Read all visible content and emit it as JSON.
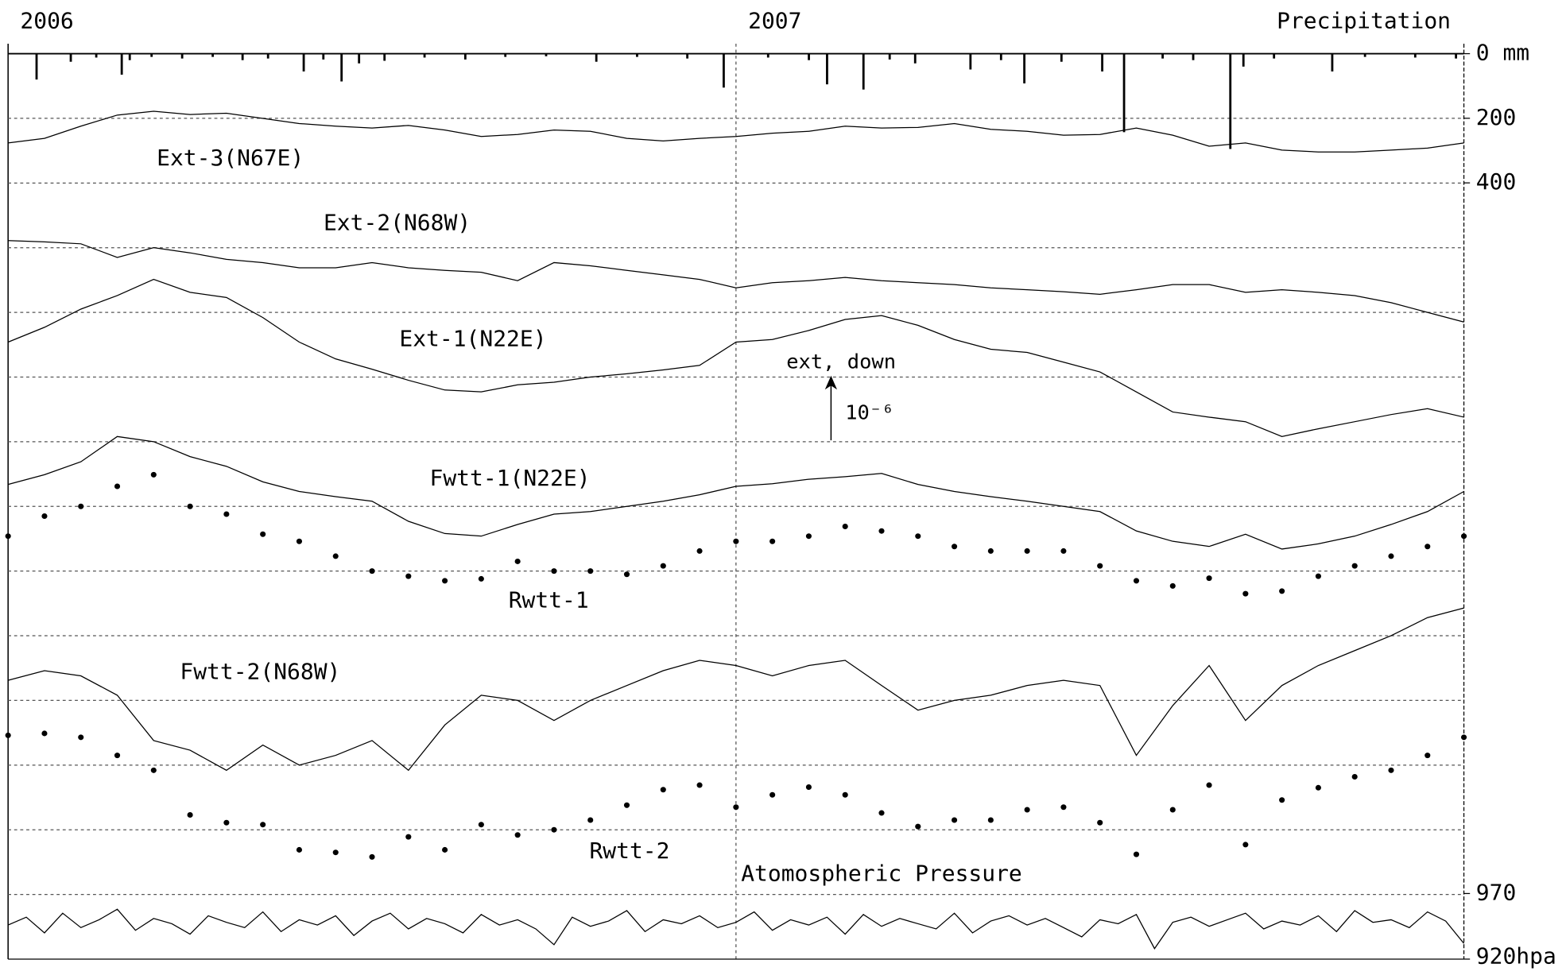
{
  "chart_data": {
    "type": "line",
    "title": "Precipitation",
    "xlim": [
      2006,
      2008
    ],
    "xticks": [
      2006,
      2007
    ],
    "ylim": [
      0,
      14
    ],
    "gridlines": [
      1,
      2,
      3,
      4,
      5,
      6,
      7,
      8,
      9,
      10,
      11,
      12,
      13
    ],
    "x": [
      2006.0,
      2006.05,
      2006.1,
      2006.15,
      2006.2,
      2006.25,
      2006.3,
      2006.35,
      2006.4,
      2006.45,
      2006.5,
      2006.55,
      2006.6,
      2006.65,
      2006.7,
      2006.75,
      2006.8,
      2006.85,
      2006.9,
      2006.95,
      2007.0,
      2007.05,
      2007.1,
      2007.15,
      2007.2,
      2007.25,
      2007.3,
      2007.35,
      2007.4,
      2007.45,
      2007.5,
      2007.55,
      2007.6,
      2007.65,
      2007.7,
      2007.75,
      2007.8,
      2007.85,
      2007.9,
      2007.95,
      2008.0
    ],
    "series": [
      {
        "name": "Ext-3(N67E)",
        "style": "line",
        "color": "#000000",
        "values": [
          12.62,
          12.69,
          12.88,
          13.05,
          13.11,
          13.06,
          13.08,
          13.0,
          12.92,
          12.88,
          12.85,
          12.89,
          12.82,
          12.72,
          12.75,
          12.82,
          12.8,
          12.69,
          12.65,
          12.69,
          12.72,
          12.77,
          12.8,
          12.88,
          12.85,
          12.86,
          12.92,
          12.83,
          12.8,
          12.74,
          12.75,
          12.85,
          12.74,
          12.57,
          12.62,
          12.51,
          12.48,
          12.48,
          12.51,
          12.54,
          12.62
        ]
      },
      {
        "name": "Ext-2(N68W)",
        "style": "line",
        "color": "#000000",
        "values": [
          11.11,
          11.09,
          11.06,
          10.85,
          11.0,
          10.92,
          10.82,
          10.77,
          10.69,
          10.69,
          10.77,
          10.69,
          10.65,
          10.62,
          10.49,
          10.77,
          10.72,
          10.65,
          10.58,
          10.51,
          10.38,
          10.46,
          10.49,
          10.54,
          10.49,
          10.46,
          10.43,
          10.38,
          10.35,
          10.32,
          10.28,
          10.35,
          10.43,
          10.43,
          10.31,
          10.35,
          10.31,
          10.26,
          10.15,
          10.0,
          9.85
        ]
      },
      {
        "name": "Ext-1(N22E)",
        "style": "line",
        "color": "#000000",
        "values": [
          9.54,
          9.77,
          10.05,
          10.26,
          10.51,
          10.31,
          10.23,
          9.92,
          9.54,
          9.28,
          9.12,
          8.95,
          8.8,
          8.77,
          8.88,
          8.92,
          9.0,
          9.05,
          9.11,
          9.18,
          9.54,
          9.58,
          9.72,
          9.89,
          9.95,
          9.8,
          9.58,
          9.43,
          9.38,
          9.23,
          9.08,
          8.77,
          8.46,
          8.38,
          8.31,
          8.08,
          8.2,
          8.31,
          8.42,
          8.51,
          8.38
        ]
      },
      {
        "name": "Fwtt-1(N22E)",
        "style": "line",
        "color": "#000000",
        "values": [
          7.34,
          7.49,
          7.69,
          8.08,
          8.0,
          7.77,
          7.62,
          7.38,
          7.23,
          7.15,
          7.08,
          6.77,
          6.58,
          6.54,
          6.72,
          6.88,
          6.92,
          7.0,
          7.08,
          7.18,
          7.31,
          7.35,
          7.42,
          7.46,
          7.51,
          7.34,
          7.23,
          7.15,
          7.08,
          7.0,
          6.92,
          6.62,
          6.46,
          6.38,
          6.57,
          6.34,
          6.42,
          6.54,
          6.72,
          6.92,
          7.23
        ]
      },
      {
        "name": "Rwtt-1",
        "style": "dots",
        "color": "#000000",
        "values": [
          6.54,
          6.85,
          7.0,
          7.31,
          7.49,
          7.0,
          6.88,
          6.57,
          6.46,
          6.23,
          6.0,
          5.92,
          5.85,
          5.88,
          6.15,
          6.0,
          6.0,
          5.95,
          6.08,
          6.31,
          6.46,
          6.46,
          6.54,
          6.69,
          6.62,
          6.54,
          6.38,
          6.31,
          6.31,
          6.31,
          6.08,
          5.85,
          5.77,
          5.89,
          5.65,
          5.69,
          5.92,
          6.08,
          6.23,
          6.38,
          6.54
        ]
      },
      {
        "name": "Fwtt-2(N68W)",
        "style": "line",
        "color": "#000000",
        "values": [
          4.31,
          4.46,
          4.38,
          4.08,
          3.38,
          3.23,
          2.92,
          3.31,
          3.0,
          3.15,
          3.38,
          2.92,
          3.62,
          4.08,
          4.0,
          3.69,
          4.0,
          4.23,
          4.46,
          4.62,
          4.54,
          4.38,
          4.54,
          4.62,
          4.23,
          3.85,
          4.0,
          4.08,
          4.23,
          4.31,
          4.23,
          3.15,
          3.92,
          4.54,
          3.69,
          4.23,
          4.54,
          4.77,
          5.0,
          5.28,
          5.43
        ]
      },
      {
        "name": "Rwtt-2",
        "style": "dots",
        "color": "#000000",
        "values": [
          3.46,
          3.49,
          3.43,
          3.15,
          2.92,
          2.23,
          2.11,
          2.08,
          1.69,
          1.65,
          1.58,
          1.89,
          1.69,
          2.08,
          1.92,
          2.0,
          2.15,
          2.38,
          2.62,
          2.69,
          2.35,
          2.54,
          2.66,
          2.54,
          2.26,
          2.05,
          2.15,
          2.15,
          2.31,
          2.35,
          2.11,
          1.62,
          2.31,
          2.69,
          1.77,
          2.46,
          2.65,
          2.82,
          2.92,
          3.15,
          3.43
        ]
      }
    ],
    "scale": {
      "title": "ext, down",
      "label": "10⁻⁶",
      "length": 1
    },
    "precipitation": {
      "ylim": [
        0,
        400
      ],
      "yticks": [
        {
          "value": 0,
          "label": "0 mm"
        },
        200,
        400
      ],
      "color": "#000000",
      "x": [
        2006.039,
        2006.086,
        2006.121,
        2006.156,
        2006.167,
        2006.197,
        2006.239,
        2006.281,
        2006.322,
        2006.357,
        2006.406,
        2006.433,
        2006.458,
        2006.482,
        2006.517,
        2006.572,
        2006.628,
        2006.683,
        2006.739,
        2006.808,
        2006.864,
        2006.933,
        2006.983,
        2007.044,
        2007.1,
        2007.125,
        2007.175,
        2007.211,
        2007.246,
        2007.322,
        2007.364,
        2007.396,
        2007.447,
        2007.503,
        2007.533,
        2007.586,
        2007.628,
        2007.679,
        2007.697,
        2007.739,
        2007.819,
        2007.864,
        2007.933,
        2007.989
      ],
      "values": [
        80,
        25,
        12,
        65,
        20,
        10,
        15,
        10,
        20,
        15,
        55,
        18,
        86,
        30,
        22,
        12,
        18,
        10,
        8,
        25,
        10,
        15,
        105,
        12,
        20,
        95,
        111,
        18,
        30,
        49,
        20,
        92,
        25,
        55,
        243,
        15,
        20,
        295,
        40,
        15,
        55,
        10,
        12,
        15
      ]
    },
    "pressure": {
      "name": "Atomospheric Pressure",
      "ylim": [
        920,
        970
      ],
      "yticks": [
        920,
        {
          "value": 920,
          "label": "920hpa"
        }
      ],
      "color": "#000000",
      "x": [
        2006.0,
        2006.025,
        2006.05,
        2006.075,
        2006.1,
        2006.125,
        2006.15,
        2006.175,
        2006.2,
        2006.225,
        2006.25,
        2006.275,
        2006.3,
        2006.325,
        2006.35,
        2006.375,
        2006.4,
        2006.425,
        2006.45,
        2006.475,
        2006.5,
        2006.525,
        2006.55,
        2006.575,
        2006.6,
        2006.625,
        2006.65,
        2006.675,
        2006.7,
        2006.725,
        2006.75,
        2006.775,
        2006.8,
        2006.825,
        2006.85,
        2006.875,
        2006.9,
        2006.925,
        2006.95,
        2006.975,
        2007.0,
        2007.025,
        2007.05,
        2007.075,
        2007.1,
        2007.125,
        2007.15,
        2007.175,
        2007.2,
        2007.225,
        2007.25,
        2007.275,
        2007.3,
        2007.325,
        2007.35,
        2007.375,
        2007.4,
        2007.425,
        2007.45,
        2007.475,
        2007.5,
        2007.525,
        2007.55,
        2007.575,
        2007.6,
        2007.625,
        2007.65,
        2007.675,
        2007.7,
        2007.725,
        2007.75,
        2007.775,
        2007.8,
        2007.825,
        2007.85,
        2007.875,
        2007.9,
        2007.925,
        2007.95,
        2007.975,
        2008.0
      ],
      "values": [
        946,
        952,
        940,
        955,
        944,
        950,
        958,
        942,
        951,
        947,
        939,
        953,
        948,
        944,
        956,
        941,
        950,
        946,
        953,
        938,
        949,
        955,
        943,
        951,
        947,
        940,
        954,
        946,
        950,
        943,
        931,
        952,
        945,
        949,
        957,
        941,
        950,
        947,
        953,
        944,
        948,
        956,
        942,
        950,
        946,
        952,
        939,
        954,
        945,
        951,
        947,
        943,
        955,
        940,
        949,
        953,
        946,
        951,
        944,
        937,
        950,
        947,
        954,
        928,
        948,
        952,
        945,
        950,
        955,
        943,
        949,
        946,
        953,
        941,
        957,
        948,
        950,
        944,
        956,
        949,
        932
      ]
    }
  }
}
